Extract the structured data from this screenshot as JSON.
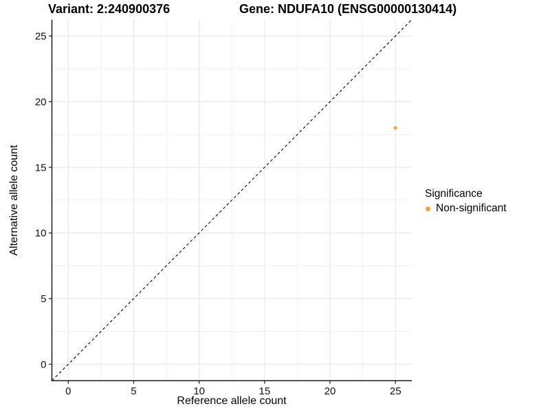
{
  "chart_data": {
    "type": "scatter",
    "titles": {
      "left": "Variant: 2:240900376",
      "right": "Gene: NDUFA10 (ENSG00000130414)"
    },
    "xlabel": "Reference allele count",
    "ylabel": "Alternative allele count",
    "xlim": [
      -1.25,
      26.25
    ],
    "ylim": [
      -1.25,
      26.25
    ],
    "major_ticks": [
      0,
      5,
      10,
      15,
      20,
      25
    ],
    "minor_ticks": [
      2.5,
      7.5,
      12.5,
      17.5,
      22.5
    ],
    "grid": "major+minor",
    "identity_line": {
      "style": "dashed",
      "x1": -1.25,
      "y1": -1.25,
      "x2": 26.25,
      "y2": 26.25,
      "color": "#000000"
    },
    "series": [
      {
        "name": "Non-significant",
        "color": "#F9A132",
        "points": [
          {
            "x": 25,
            "y": 18
          }
        ]
      }
    ],
    "legend": {
      "title": "Significance",
      "position": "right",
      "items": [
        {
          "label": "Non-significant",
          "color": "#F9A132"
        }
      ]
    }
  },
  "colors": {
    "grid_major": "#E4E4E4",
    "grid_minor": "#EDEDED",
    "axis_line": "#1A1A1A",
    "tick_text": "#111111"
  }
}
